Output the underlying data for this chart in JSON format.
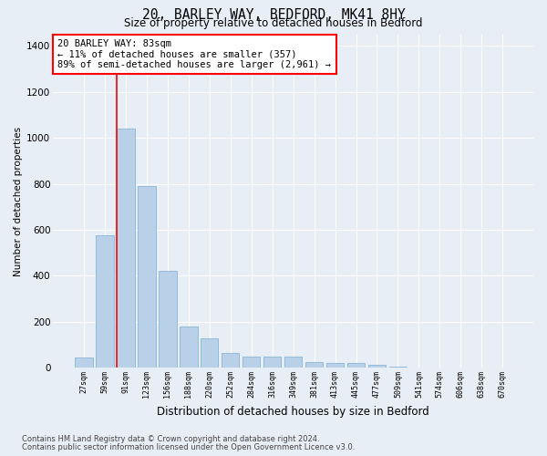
{
  "title": "20, BARLEY WAY, BEDFORD, MK41 8HY",
  "subtitle": "Size of property relative to detached houses in Bedford",
  "xlabel": "Distribution of detached houses by size in Bedford",
  "ylabel": "Number of detached properties",
  "footnote1": "Contains HM Land Registry data © Crown copyright and database right 2024.",
  "footnote2": "Contains public sector information licensed under the Open Government Licence v3.0.",
  "annotation_line1": "20 BARLEY WAY: 83sqm",
  "annotation_line2": "← 11% of detached houses are smaller (357)",
  "annotation_line3": "89% of semi-detached houses are larger (2,961) →",
  "bar_color": "#b8d0e8",
  "bar_edge_color": "#7aadd4",
  "bg_color": "#e8eef5",
  "grid_color": "#ffffff",
  "categories": [
    "27sqm",
    "59sqm",
    "91sqm",
    "123sqm",
    "156sqm",
    "188sqm",
    "220sqm",
    "252sqm",
    "284sqm",
    "316sqm",
    "349sqm",
    "381sqm",
    "413sqm",
    "445sqm",
    "477sqm",
    "509sqm",
    "541sqm",
    "574sqm",
    "606sqm",
    "638sqm",
    "670sqm"
  ],
  "values": [
    47,
    575,
    1040,
    790,
    420,
    180,
    130,
    65,
    50,
    50,
    50,
    25,
    20,
    20,
    12,
    5,
    2,
    1,
    0,
    0,
    0
  ],
  "ylim": [
    0,
    1450
  ],
  "yticks": [
    0,
    200,
    400,
    600,
    800,
    1000,
    1200,
    1400
  ],
  "red_bar_index": 2
}
